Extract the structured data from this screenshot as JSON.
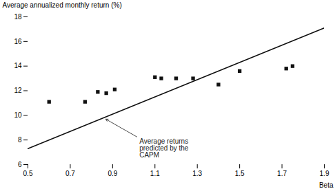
{
  "chart_data": {
    "type": "scatter",
    "xlabel": "Beta",
    "ylabel": "Average annualized monthly return (%)",
    "series": [
      {
        "type": "scatter",
        "marker": "square",
        "color": "#111111",
        "x": [
          0.6,
          0.77,
          0.83,
          0.87,
          0.91,
          1.1,
          1.13,
          1.2,
          1.28,
          1.4,
          1.5,
          1.72,
          1.75
        ],
        "values": [
          11.1,
          11.1,
          11.9,
          11.8,
          12.1,
          13.1,
          13.0,
          13.0,
          13.0,
          12.5,
          13.6,
          13.8,
          14.0
        ]
      },
      {
        "type": "line",
        "color": "#111111",
        "x": [
          0.5,
          1.9
        ],
        "values": [
          7.3,
          17.1
        ]
      }
    ],
    "annotations": [
      {
        "text": "Average returns\npredicted by the\nCAPM",
        "xy": [
          0.865,
          9.72
        ],
        "text_xy": [
          1.02,
          8.2
        ]
      }
    ],
    "xlim": [
      0.5,
      1.9
    ],
    "ylim": [
      6,
      18
    ],
    "xticks": [
      0.5,
      0.7,
      0.9,
      1.1,
      1.3,
      1.5,
      1.7,
      1.9
    ],
    "yticks": [
      6,
      8,
      10,
      12,
      14,
      16,
      18
    ],
    "grid": false
  }
}
